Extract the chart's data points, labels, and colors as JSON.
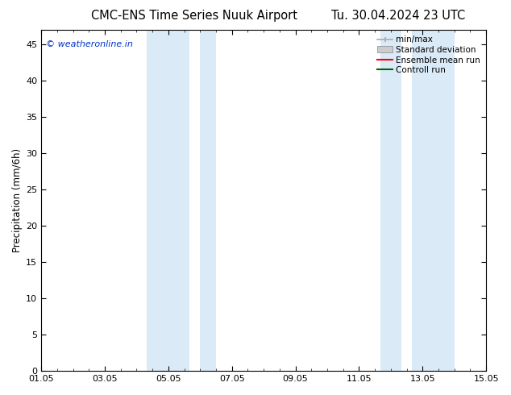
{
  "title_left": "CMC-ENS Time Series Nuuk Airport",
  "title_right": "Tu. 30.04.2024 23 UTC",
  "ylabel": "Precipitation (mm/6h)",
  "watermark": "© weatheronline.in",
  "watermark_color": "#0033cc",
  "xlim_start": 0,
  "xlim_end": 14,
  "ylim_min": 0,
  "ylim_max": 47,
  "yticks": [
    0,
    5,
    10,
    15,
    20,
    25,
    30,
    35,
    40,
    45
  ],
  "xtick_labels": [
    "01.05",
    "03.05",
    "05.05",
    "07.05",
    "09.05",
    "11.05",
    "13.05",
    "15.05"
  ],
  "xtick_positions": [
    0,
    2,
    4,
    6,
    8,
    10,
    12,
    14
  ],
  "shaded_regions": [
    {
      "x_start": 3.33,
      "x_end": 4.67,
      "color": "#daeaf7"
    },
    {
      "x_start": 5.0,
      "x_end": 5.5,
      "color": "#daeaf7"
    },
    {
      "x_start": 10.67,
      "x_end": 11.33,
      "color": "#daeaf7"
    },
    {
      "x_start": 11.67,
      "x_end": 13.0,
      "color": "#daeaf7"
    }
  ],
  "legend_entries": [
    {
      "label": "min/max",
      "color": "#aaaaaa",
      "style": "line_with_caps"
    },
    {
      "label": "Standard deviation",
      "color": "#cccccc",
      "style": "filled_bar"
    },
    {
      "label": "Ensemble mean run",
      "color": "#ff0000",
      "style": "line"
    },
    {
      "label": "Controll run",
      "color": "#006600",
      "style": "line"
    }
  ],
  "background_color": "#ffffff",
  "title_fontsize": 10.5,
  "axis_fontsize": 8.5,
  "tick_fontsize": 8,
  "watermark_fontsize": 8
}
